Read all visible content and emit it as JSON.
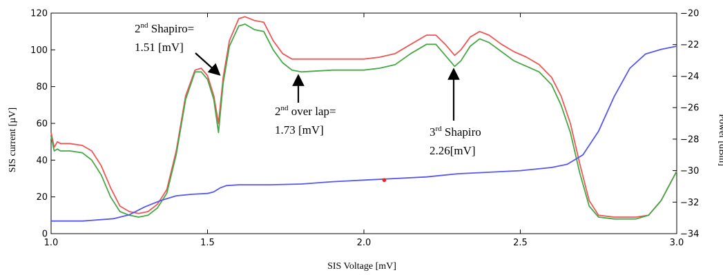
{
  "chart_data": {
    "type": "line",
    "xlabel": "SIS Voltage [mV]",
    "ylabel": "SIS current [µV]",
    "y2label": "Power [dBm]",
    "xlim": [
      1.0,
      3.0
    ],
    "ylim": [
      0,
      120
    ],
    "y2lim": [
      -34,
      -20
    ],
    "x_ticks": [
      "1.0",
      "1.5",
      "2.0",
      "2.5",
      "3.0"
    ],
    "y_ticks": [
      "0",
      "20",
      "40",
      "60",
      "80",
      "100",
      "120"
    ],
    "y2_ticks": [
      "−34",
      "−32",
      "−30",
      "−28",
      "−26",
      "−24",
      "−22",
      "−20"
    ],
    "grid": false,
    "colors": {
      "red": "#ee5555",
      "green": "#44a744",
      "blue": "#5555ee",
      "marker": "#ee2222"
    },
    "series": [
      {
        "color": "red",
        "axis": "left",
        "points": [
          [
            1.0,
            55
          ],
          [
            1.01,
            47
          ],
          [
            1.02,
            50
          ],
          [
            1.03,
            49
          ],
          [
            1.06,
            49
          ],
          [
            1.1,
            48
          ],
          [
            1.13,
            45
          ],
          [
            1.16,
            37
          ],
          [
            1.19,
            25
          ],
          [
            1.22,
            15
          ],
          [
            1.25,
            12
          ],
          [
            1.28,
            11
          ],
          [
            1.31,
            12
          ],
          [
            1.34,
            16
          ],
          [
            1.37,
            24
          ],
          [
            1.4,
            45
          ],
          [
            1.43,
            75
          ],
          [
            1.46,
            89
          ],
          [
            1.48,
            90
          ],
          [
            1.5,
            86
          ],
          [
            1.52,
            75
          ],
          [
            1.535,
            60
          ],
          [
            1.55,
            85
          ],
          [
            1.57,
            105
          ],
          [
            1.6,
            117
          ],
          [
            1.62,
            118
          ],
          [
            1.65,
            116
          ],
          [
            1.68,
            115
          ],
          [
            1.71,
            105
          ],
          [
            1.74,
            98
          ],
          [
            1.77,
            95
          ],
          [
            1.8,
            95
          ],
          [
            1.9,
            95
          ],
          [
            2.0,
            95
          ],
          [
            2.05,
            96
          ],
          [
            2.1,
            98
          ],
          [
            2.15,
            103
          ],
          [
            2.2,
            108
          ],
          [
            2.23,
            108
          ],
          [
            2.26,
            103
          ],
          [
            2.29,
            97
          ],
          [
            2.31,
            100
          ],
          [
            2.34,
            107
          ],
          [
            2.37,
            110
          ],
          [
            2.4,
            108
          ],
          [
            2.44,
            103
          ],
          [
            2.48,
            99
          ],
          [
            2.52,
            96
          ],
          [
            2.56,
            92
          ],
          [
            2.6,
            85
          ],
          [
            2.63,
            75
          ],
          [
            2.66,
            60
          ],
          [
            2.69,
            38
          ],
          [
            2.72,
            18
          ],
          [
            2.75,
            10
          ],
          [
            2.8,
            9
          ],
          [
            2.87,
            9
          ],
          [
            2.91,
            10
          ],
          [
            2.95,
            18
          ],
          [
            3.0,
            34
          ]
        ]
      },
      {
        "color": "green",
        "axis": "left",
        "points": [
          [
            1.0,
            53
          ],
          [
            1.01,
            45
          ],
          [
            1.02,
            46
          ],
          [
            1.03,
            45
          ],
          [
            1.06,
            45
          ],
          [
            1.1,
            44
          ],
          [
            1.13,
            40
          ],
          [
            1.16,
            32
          ],
          [
            1.19,
            20
          ],
          [
            1.22,
            12
          ],
          [
            1.25,
            10
          ],
          [
            1.28,
            9
          ],
          [
            1.31,
            10
          ],
          [
            1.34,
            14
          ],
          [
            1.37,
            22
          ],
          [
            1.4,
            43
          ],
          [
            1.43,
            73
          ],
          [
            1.46,
            88
          ],
          [
            1.48,
            88
          ],
          [
            1.5,
            84
          ],
          [
            1.52,
            73
          ],
          [
            1.535,
            55
          ],
          [
            1.55,
            82
          ],
          [
            1.57,
            102
          ],
          [
            1.6,
            113
          ],
          [
            1.62,
            114
          ],
          [
            1.65,
            111
          ],
          [
            1.68,
            110
          ],
          [
            1.71,
            100
          ],
          [
            1.74,
            93
          ],
          [
            1.77,
            89
          ],
          [
            1.8,
            88
          ],
          [
            1.9,
            89
          ],
          [
            2.0,
            89
          ],
          [
            2.05,
            90
          ],
          [
            2.1,
            92
          ],
          [
            2.15,
            98
          ],
          [
            2.2,
            103
          ],
          [
            2.23,
            103
          ],
          [
            2.26,
            97
          ],
          [
            2.29,
            91
          ],
          [
            2.31,
            94
          ],
          [
            2.34,
            102
          ],
          [
            2.37,
            106
          ],
          [
            2.4,
            104
          ],
          [
            2.44,
            99
          ],
          [
            2.48,
            94
          ],
          [
            2.52,
            91
          ],
          [
            2.56,
            88
          ],
          [
            2.6,
            81
          ],
          [
            2.63,
            70
          ],
          [
            2.66,
            55
          ],
          [
            2.69,
            33
          ],
          [
            2.72,
            15
          ],
          [
            2.75,
            9
          ],
          [
            2.8,
            8
          ],
          [
            2.87,
            8
          ],
          [
            2.91,
            10
          ],
          [
            2.95,
            18
          ],
          [
            3.0,
            34
          ]
        ]
      },
      {
        "color": "blue",
        "axis": "right",
        "points": [
          [
            1.0,
            -33.2
          ],
          [
            1.1,
            -33.2
          ],
          [
            1.2,
            -33.05
          ],
          [
            1.25,
            -32.8
          ],
          [
            1.3,
            -32.3
          ],
          [
            1.35,
            -31.9
          ],
          [
            1.4,
            -31.6
          ],
          [
            1.45,
            -31.5
          ],
          [
            1.5,
            -31.45
          ],
          [
            1.52,
            -31.35
          ],
          [
            1.54,
            -31.1
          ],
          [
            1.56,
            -30.95
          ],
          [
            1.6,
            -30.9
          ],
          [
            1.7,
            -30.9
          ],
          [
            1.8,
            -30.85
          ],
          [
            1.9,
            -30.7
          ],
          [
            2.0,
            -30.6
          ],
          [
            2.1,
            -30.5
          ],
          [
            2.2,
            -30.4
          ],
          [
            2.3,
            -30.2
          ],
          [
            2.4,
            -30.1
          ],
          [
            2.5,
            -30.0
          ],
          [
            2.6,
            -29.8
          ],
          [
            2.65,
            -29.6
          ],
          [
            2.7,
            -29.0
          ],
          [
            2.75,
            -27.5
          ],
          [
            2.8,
            -25.3
          ],
          [
            2.85,
            -23.5
          ],
          [
            2.9,
            -22.6
          ],
          [
            2.95,
            -22.3
          ],
          [
            3.0,
            -22.1
          ]
        ]
      }
    ],
    "marker": {
      "x": 2.065,
      "y": -30.6,
      "color": "marker",
      "axis": "right"
    },
    "annotations": [
      {
        "id": "a1",
        "lines": [
          [
            "2",
            "nd",
            " Shapiro="
          ],
          [
            "1.51 [mV]"
          ]
        ]
      },
      {
        "id": "a2",
        "lines": [
          [
            "2",
            "nd",
            " over lap="
          ],
          [
            "1.73 [mV]"
          ]
        ]
      },
      {
        "id": "a3",
        "lines": [
          [
            "3",
            "rd",
            " Shapiro"
          ],
          [
            "2.26[mV]"
          ]
        ]
      }
    ]
  }
}
